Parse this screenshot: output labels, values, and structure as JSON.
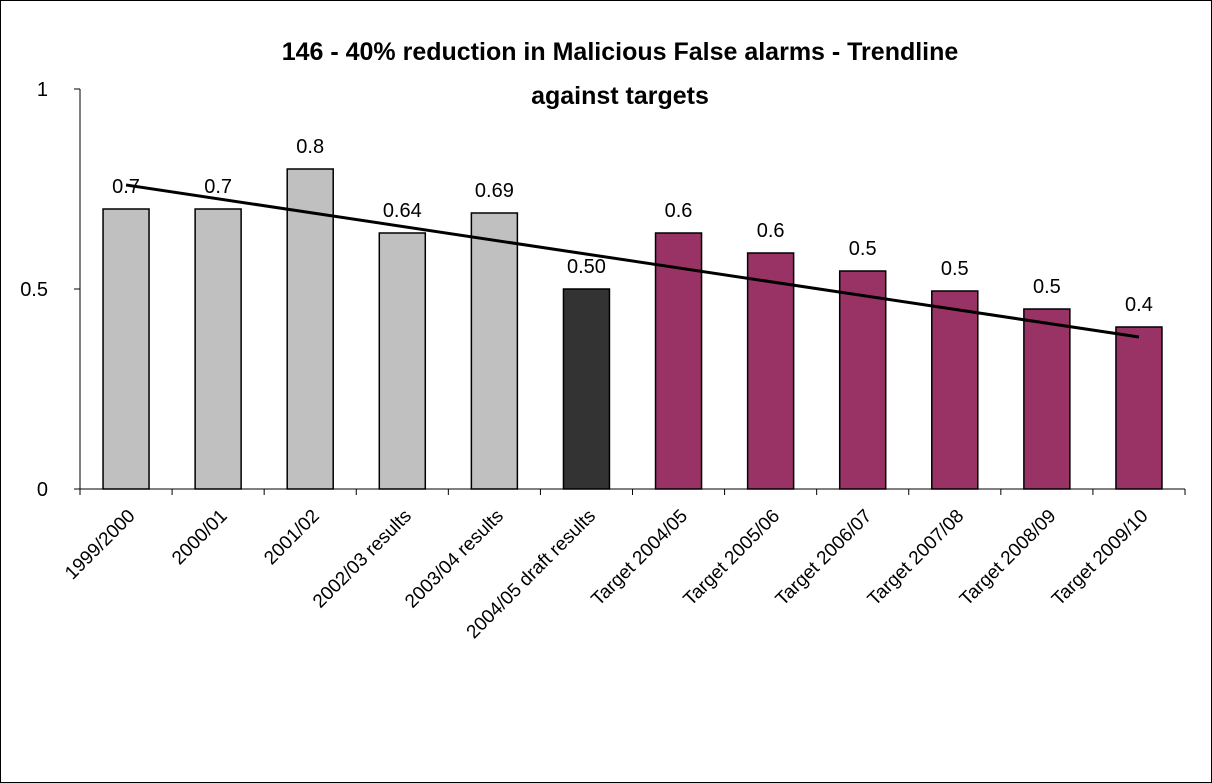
{
  "chart_data": {
    "type": "bar",
    "title_lines": [
      "146 - 40% reduction in Malicious False alarms - Trendline",
      "against targets"
    ],
    "categories": [
      "1999/2000",
      "2000/01",
      "2001/02",
      "2002/03 results",
      "2003/04 results",
      "2004/05 draft results",
      "Target 2004/05",
      "Target 2005/06",
      "Target 2006/07",
      "Target 2007/08",
      "Target 2008/09",
      "Target 2009/10"
    ],
    "values": [
      0.7,
      0.7,
      0.8,
      0.64,
      0.69,
      0.5,
      0.64,
      0.59,
      0.545,
      0.495,
      0.45,
      0.405
    ],
    "data_labels": [
      "0.7",
      "0.7",
      "0.8",
      "0.64",
      "0.69",
      "0.50",
      "0.6",
      "0.6",
      "0.5",
      "0.5",
      "0.5",
      "0.4"
    ],
    "bar_colors": [
      "#c0c0c0",
      "#c0c0c0",
      "#c0c0c0",
      "#c0c0c0",
      "#c0c0c0",
      "#333333",
      "#993366",
      "#993366",
      "#993366",
      "#993366",
      "#993366",
      "#993366"
    ],
    "trendline": {
      "start": 0.76,
      "end": 0.38,
      "color": "#000000"
    },
    "ylim": [
      0,
      1
    ],
    "yticks": [
      0,
      0.5,
      1
    ],
    "ytick_labels": [
      "0",
      "0.5",
      "1"
    ],
    "grid": false,
    "legend": "none"
  }
}
